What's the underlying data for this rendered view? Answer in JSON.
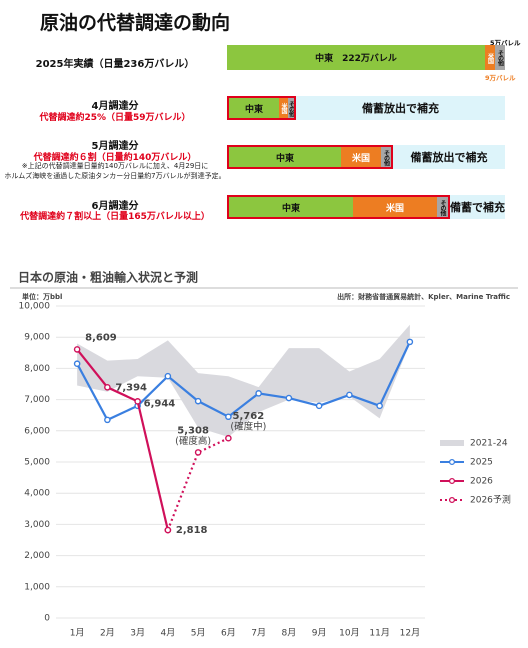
{
  "title": "原油の代替調達の動向",
  "rows": [
    {
      "label": "2025年実績（日量236万バレル）",
      "segments": [
        "中東　222万バレル",
        "米国",
        "その他"
      ],
      "top_note": "5万バレル",
      "bottom_note": "9万バレル"
    },
    {
      "label": "4月調達分",
      "sub": "代替調達約25%（日量59万バレル）",
      "segments": [
        "中東",
        "米国",
        "その他"
      ],
      "fill": "備蓄放出で補充"
    },
    {
      "label": "5月調達分",
      "sub": "代替調達約６割（日量約140万バレル）",
      "notes": [
        "※上記の代替調達量日量約140万バレルに加え、4月29日に",
        "ホルムズ海峡を通過した原油タンカー分日量約7万バレルが到達予定。"
      ],
      "segments": [
        "中東",
        "米国",
        "その他"
      ],
      "fill": "備蓄放出で補充"
    },
    {
      "label": "6月調達分",
      "sub": "代替調達約７割以上（日量165万バレル以上）",
      "segments": [
        "中東",
        "米国",
        "その他"
      ],
      "fill": "備蓄で補充"
    }
  ],
  "chart_data": {
    "type": "line",
    "title": "日本の原油・粗油輸入状況と予測",
    "unit": "単位：万bbl",
    "source": "出所：財務省普通貿易統計、Kpler、Marine Traffic",
    "categories": [
      "1月",
      "2月",
      "3月",
      "4月",
      "5月",
      "6月",
      "7月",
      "8月",
      "9月",
      "10月",
      "11月",
      "12月"
    ],
    "ylim": [
      0,
      10000
    ],
    "yticks": [
      0,
      {
        "value": 1000,
        "label": "1,000"
      },
      {
        "value": 2000,
        "label": "2,000"
      },
      {
        "value": 3000,
        "label": "3,000"
      },
      {
        "value": 4000,
        "label": "4,000"
      },
      {
        "value": 5000,
        "label": "5,000"
      },
      {
        "value": 6000,
        "label": "6,000"
      },
      {
        "value": 7000,
        "label": "7,000"
      },
      {
        "value": 8000,
        "label": "8,000"
      },
      {
        "value": 9000,
        "label": "9,000"
      },
      {
        "value": 10000,
        "label": "10,000"
      }
    ],
    "grid": true,
    "band": {
      "name": "2021-24",
      "color": "#d9d9de",
      "low": [
        7450,
        7250,
        7750,
        7700,
        6100,
        5800,
        6600,
        7000,
        6900,
        7100,
        6400,
        8800
      ],
      "high": [
        8800,
        8250,
        8300,
        8900,
        7850,
        7750,
        7400,
        8650,
        8650,
        7900,
        8300,
        9400
      ]
    },
    "series": [
      {
        "name": "2025",
        "color": "#3a7fe0",
        "dash": false,
        "values": [
          8150,
          6350,
          6800,
          7750,
          6950,
          6450,
          7200,
          7050,
          6800,
          7150,
          6800,
          8850
        ]
      },
      {
        "name": "2026",
        "color": "#d0105a",
        "dash": false,
        "values": [
          8609,
          7394,
          6944,
          2818,
          null,
          null,
          null,
          null,
          null,
          null,
          null,
          null
        ],
        "value_labels": [
          "8,609",
          "7,394",
          "6,944",
          "2,818",
          null,
          null,
          null,
          null,
          null,
          null,
          null,
          null
        ]
      },
      {
        "name": "2026予測",
        "color": "#d0105a",
        "dash": true,
        "values": [
          null,
          null,
          null,
          2818,
          5308,
          5762,
          null,
          null,
          null,
          null,
          null,
          null
        ],
        "value_labels": [
          null,
          null,
          null,
          null,
          "5,308",
          "5,762",
          null,
          null,
          null,
          null,
          null,
          null
        ],
        "notes": [
          null,
          null,
          null,
          null,
          "(確度高)",
          "(確度中)",
          null,
          null,
          null,
          null,
          null,
          null
        ]
      }
    ]
  }
}
